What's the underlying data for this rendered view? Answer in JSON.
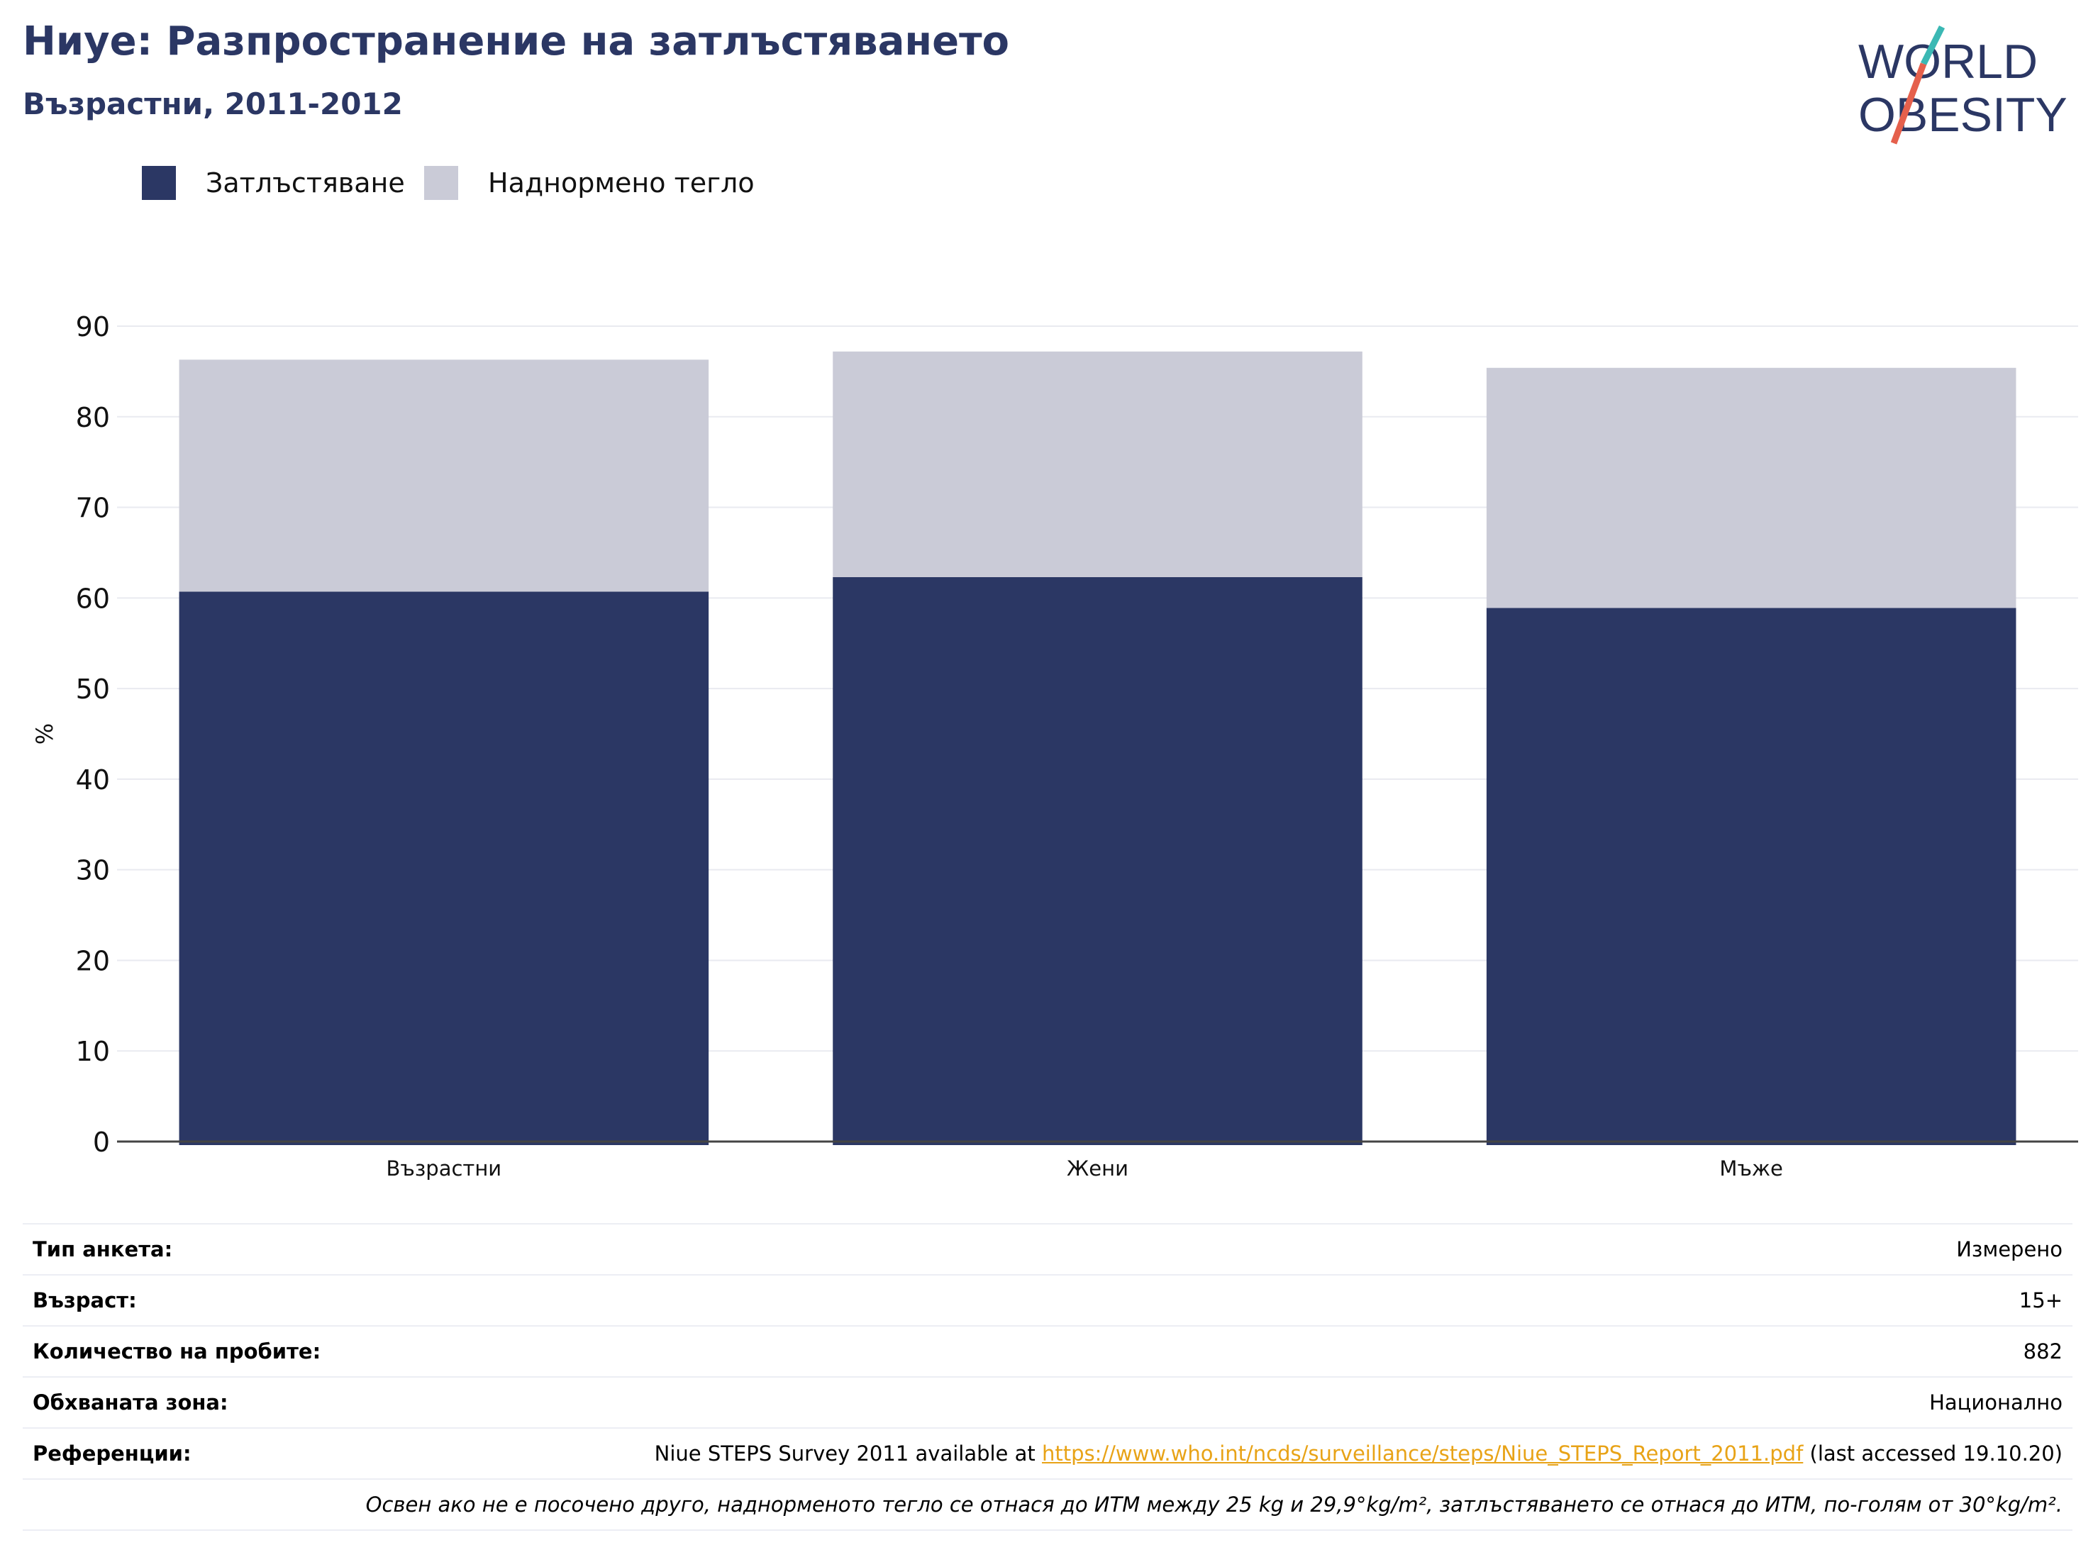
{
  "header": {
    "title": "Ниуе: Разпространение на затлъстяването",
    "subtitle": "Възрастни, 2011-2012"
  },
  "logo": {
    "line1": "WORLD",
    "line2": "OBESITY",
    "colors": {
      "text": "#2b3764",
      "accent_teal": "#3bb8b4",
      "accent_red": "#e5604c"
    }
  },
  "colors": {
    "obesity": "#2b3764",
    "overweight": "#cacbd7",
    "link": "#e8a317",
    "title": "#2b3764"
  },
  "chart_data": {
    "type": "bar",
    "stacked": true,
    "categories": [
      "Възрастни",
      "Жени",
      "Мъже"
    ],
    "series": [
      {
        "name": "Затлъстяване",
        "values": [
          60.7,
          62.3,
          58.9
        ],
        "color": "#2b3764"
      },
      {
        "name": "Наднормено тегло",
        "values": [
          25.6,
          24.9,
          26.5
        ],
        "color": "#cacbd7"
      }
    ],
    "ylabel": "%",
    "xlabel": "",
    "ylim": [
      0,
      90
    ],
    "yticks": [
      0,
      10,
      20,
      30,
      40,
      50,
      60,
      70,
      80,
      90
    ],
    "grid": true,
    "legend_position": "top-left"
  },
  "info": {
    "rows": [
      {
        "label": "Тип анкета:",
        "value": "Измерено"
      },
      {
        "label": "Възраст:",
        "value": "15+"
      },
      {
        "label": "Количество на пробите:",
        "value": "882"
      },
      {
        "label": "Обхваната зона:",
        "value": "Национално"
      }
    ],
    "references": {
      "label": "Референции:",
      "prefix": "Niue STEPS Survey 2011 available at ",
      "link": "https://www.who.int/ncds/surveillance/steps/Niue_STEPS_Report_2011.pdf",
      "suffix": " (last accessed 19.10.20)"
    },
    "note": "Освен ако не е посочено друго, наднорменото тегло се отнася до ИТМ между 25 kg и 29,9°kg/m², затлъстяването се отнася до ИТМ, по-голям от 30°kg/m²."
  }
}
